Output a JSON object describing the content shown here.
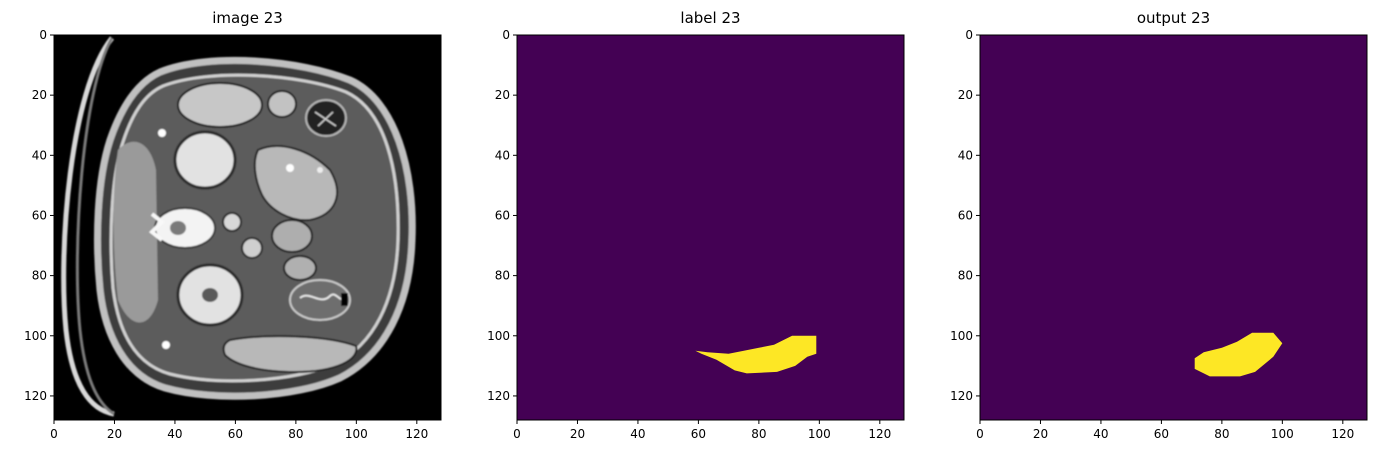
{
  "figure": {
    "panels": [
      {
        "key": "image",
        "title": "image 23",
        "kind": "ct-image"
      },
      {
        "key": "label",
        "title": "label 23",
        "kind": "mask",
        "colors": {
          "background": "#440154",
          "foreground": "#fde725"
        }
      },
      {
        "key": "output",
        "title": "output 23",
        "kind": "mask",
        "colors": {
          "background": "#440154",
          "foreground": "#fde725"
        }
      }
    ],
    "x_ticks": [
      "0",
      "20",
      "40",
      "60",
      "80",
      "100",
      "120"
    ],
    "y_ticks": [
      "0",
      "20",
      "40",
      "60",
      "80",
      "100",
      "120"
    ]
  },
  "chart_data": [
    {
      "type": "heatmap",
      "title": "image 23",
      "xlim": [
        0,
        128
      ],
      "ylim": [
        128,
        0
      ],
      "x_ticks": [
        0,
        20,
        40,
        60,
        80,
        100,
        120
      ],
      "y_ticks": [
        0,
        20,
        40,
        60,
        80,
        100,
        120
      ]
    },
    {
      "type": "heatmap",
      "title": "label 23",
      "xlim": [
        0,
        128
      ],
      "ylim": [
        128,
        0
      ],
      "x_ticks": [
        0,
        20,
        40,
        60,
        80,
        100,
        120
      ],
      "y_ticks": [
        0,
        20,
        40,
        60,
        80,
        100,
        120
      ],
      "mask_polygon": [
        [
          59,
          105
        ],
        [
          63,
          105.5
        ],
        [
          70,
          106
        ],
        [
          75,
          105
        ],
        [
          80,
          104
        ],
        [
          85,
          103
        ],
        [
          91,
          100
        ],
        [
          99,
          100
        ],
        [
          99,
          106
        ],
        [
          96,
          107
        ],
        [
          92,
          110
        ],
        [
          86,
          112
        ],
        [
          76,
          112.5
        ],
        [
          72,
          111.5
        ],
        [
          66,
          108
        ],
        [
          61,
          106
        ]
      ]
    },
    {
      "type": "heatmap",
      "title": "output 23",
      "xlim": [
        0,
        128
      ],
      "ylim": [
        128,
        0
      ],
      "x_ticks": [
        0,
        20,
        40,
        60,
        80,
        100,
        120
      ],
      "y_ticks": [
        0,
        20,
        40,
        60,
        80,
        100,
        120
      ],
      "mask_polygon": [
        [
          71,
          107.5
        ],
        [
          74,
          105.5
        ],
        [
          80,
          104
        ],
        [
          85,
          102
        ],
        [
          90,
          99
        ],
        [
          97,
          99
        ],
        [
          100,
          102.5
        ],
        [
          97,
          107
        ],
        [
          91,
          112
        ],
        [
          86,
          113.5
        ],
        [
          76,
          113.5
        ],
        [
          71,
          111
        ]
      ]
    }
  ]
}
